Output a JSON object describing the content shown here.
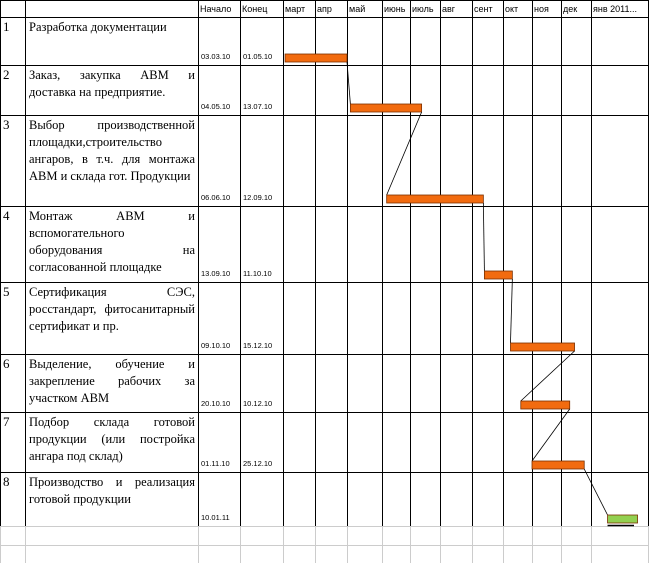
{
  "table": {
    "header": [
      "Начало",
      "Конец",
      "март",
      "апр",
      "май",
      "июнь",
      "июль",
      "авг",
      "сент",
      "окт",
      "ноя",
      "дек",
      "янв 2011..."
    ],
    "rows": [
      {
        "num": "1",
        "task": "Разработка документации",
        "start": "03.03.10",
        "end": "01.05.10"
      },
      {
        "num": "2",
        "task": "Заказ, закупка АВМ и доставка на предприятие.",
        "start": "04.05.10",
        "end": "13.07.10"
      },
      {
        "num": "3",
        "task": "Выбор производственной площадки,строительство ангаров, в т.ч. для монтажа АВМ и склада гот. Продукции",
        "start": "06.06.10",
        "end": "12.09.10"
      },
      {
        "num": "4",
        "task": "Монтаж АВМ и вспомогательного оборудования на согласованной площадке",
        "start": "13.09.10",
        "end": "11.10.10"
      },
      {
        "num": "5",
        "task": "Сертификация  СЭС, росстандарт, фитосанитарный сертификат и пр.",
        "start": "09.10.10",
        "end": "15.12.10"
      },
      {
        "num": "6",
        "task": "Выделение, обучение и закрепление рабочих за участком АВМ",
        "start": "20.10.10",
        "end": "10.12.10"
      },
      {
        "num": "7",
        "task": "Подбор склада готовой продукции (или постройка ангара под склад)",
        "start": "01.11.10",
        "end": "25.12.10"
      },
      {
        "num": "8",
        "task": "Производство и реализация готовой продукции",
        "start": "10.01.11"
      }
    ]
  }
}
